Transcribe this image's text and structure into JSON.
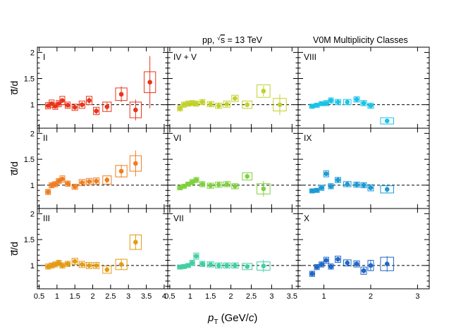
{
  "header": {
    "system_prefix": "pp, ",
    "sqrt_s": "s",
    "system_suffix": " = 13 TeV",
    "classes_label": "V0M Multiplicity Classes"
  },
  "axes": {
    "ylabel": "d̅/d",
    "xlabel_var": "p",
    "xlabel_sub": "T",
    "xlabel_unit": " (GeV/",
    "xlabel_c": "c",
    "xlabel_close": ")"
  },
  "chart_data": {
    "type": "scatter",
    "title": "pp, √s = 13 TeV — V0M Multiplicity Classes",
    "xlabel": "pT (GeV/c)",
    "ylabel": "d̅/d",
    "ylim": [
      0.55,
      2.1
    ],
    "yticks": [
      0.5,
      1,
      1.5,
      2
    ],
    "reference_line": 1,
    "columns": [
      {
        "xlim": [
          0.45,
          4.1
        ],
        "xticks": [
          0.5,
          1,
          1.5,
          2,
          2.5,
          3,
          3.5,
          4
        ],
        "xticklabels": [
          "0.5",
          "1",
          "1.5",
          "2",
          "2.5",
          "3",
          "3.5",
          "4"
        ]
      },
      {
        "xlim": [
          0.45,
          3.65
        ],
        "xticks": [
          0.5,
          1,
          1.5,
          2,
          2.5,
          3,
          3.5
        ],
        "xticklabels": [
          "0.5",
          "1",
          "1.5",
          "2",
          "2.5",
          "3",
          "3.5"
        ]
      },
      {
        "xlim": [
          0.45,
          3.25
        ],
        "xticks": [
          1,
          2,
          3
        ],
        "xticklabels": [
          "1",
          "2",
          "3"
        ]
      }
    ],
    "panels": [
      {
        "label": "I",
        "col": 0,
        "row": 0,
        "color": "#e8351a",
        "x": [
          0.75,
          0.85,
          0.95,
          1.05,
          1.15,
          1.3,
          1.5,
          1.7,
          1.9,
          2.1,
          2.4,
          2.8,
          3.2,
          3.6
        ],
        "y": [
          0.98,
          1.02,
          0.97,
          1.02,
          1.08,
          0.99,
          0.95,
          1.0,
          1.08,
          0.88,
          0.96,
          1.2,
          0.9,
          1.43
        ],
        "ysys": [
          0.06,
          0.07,
          0.06,
          0.06,
          0.08,
          0.06,
          0.06,
          0.07,
          0.08,
          0.07,
          0.09,
          0.12,
          0.15,
          0.2
        ],
        "ystat": [
          0.03,
          0.03,
          0.03,
          0.03,
          0.04,
          0.04,
          0.04,
          0.05,
          0.06,
          0.06,
          0.08,
          0.15,
          0.2,
          0.5
        ]
      },
      {
        "label": "II",
        "col": 0,
        "row": 1,
        "color": "#ef7d1f",
        "x": [
          0.75,
          0.85,
          0.95,
          1.05,
          1.15,
          1.3,
          1.5,
          1.7,
          1.9,
          2.1,
          2.4,
          2.8,
          3.2
        ],
        "y": [
          0.87,
          1.0,
          1.02,
          1.08,
          1.12,
          1.03,
          0.97,
          1.05,
          1.07,
          1.08,
          1.1,
          1.27,
          1.42
        ],
        "ysys": [
          0.05,
          0.05,
          0.05,
          0.05,
          0.06,
          0.05,
          0.05,
          0.06,
          0.06,
          0.06,
          0.08,
          0.11,
          0.15
        ],
        "ystat": [
          0.03,
          0.03,
          0.03,
          0.03,
          0.03,
          0.03,
          0.04,
          0.04,
          0.04,
          0.05,
          0.06,
          0.12,
          0.25
        ]
      },
      {
        "label": "III",
        "col": 0,
        "row": 2,
        "color": "#e39b15",
        "x": [
          0.75,
          0.85,
          0.95,
          1.05,
          1.15,
          1.3,
          1.5,
          1.7,
          1.9,
          2.1,
          2.4,
          2.8,
          3.2
        ],
        "y": [
          0.98,
          1.0,
          1.02,
          1.05,
          1.0,
          1.03,
          1.08,
          1.02,
          1.0,
          1.0,
          0.92,
          1.02,
          1.45
        ],
        "ysys": [
          0.05,
          0.05,
          0.05,
          0.05,
          0.05,
          0.05,
          0.06,
          0.06,
          0.06,
          0.06,
          0.07,
          0.1,
          0.14
        ],
        "ystat": [
          0.02,
          0.02,
          0.02,
          0.02,
          0.03,
          0.03,
          0.03,
          0.03,
          0.04,
          0.04,
          0.05,
          0.1,
          0.15
        ]
      },
      {
        "label": "IV + V",
        "col": 1,
        "row": 0,
        "color": "#c2d12a",
        "x": [
          0.75,
          0.85,
          0.95,
          1.05,
          1.15,
          1.3,
          1.5,
          1.7,
          1.9,
          2.1,
          2.4,
          2.8,
          3.2
        ],
        "y": [
          0.93,
          1.0,
          1.02,
          1.03,
          1.02,
          1.05,
          1.01,
          0.98,
          1.01,
          1.12,
          1.0,
          1.26,
          1.0
        ],
        "ysys": [
          0.05,
          0.05,
          0.05,
          0.05,
          0.05,
          0.05,
          0.05,
          0.05,
          0.06,
          0.06,
          0.07,
          0.12,
          0.12
        ],
        "ystat": [
          0.02,
          0.02,
          0.02,
          0.02,
          0.02,
          0.02,
          0.03,
          0.03,
          0.03,
          0.04,
          0.05,
          0.1,
          0.2
        ]
      },
      {
        "label": "VI",
        "col": 1,
        "row": 1,
        "color": "#7fd13c",
        "x": [
          0.75,
          0.85,
          0.95,
          1.05,
          1.15,
          1.3,
          1.5,
          1.7,
          1.9,
          2.1,
          2.4,
          2.8
        ],
        "y": [
          0.95,
          0.98,
          1.02,
          1.06,
          1.1,
          1.02,
          0.99,
          1.01,
          1.02,
          0.98,
          1.17,
          0.93
        ],
        "ysys": [
          0.04,
          0.04,
          0.04,
          0.05,
          0.05,
          0.05,
          0.05,
          0.05,
          0.05,
          0.05,
          0.07,
          0.1
        ],
        "ystat": [
          0.02,
          0.02,
          0.02,
          0.02,
          0.02,
          0.02,
          0.02,
          0.03,
          0.03,
          0.03,
          0.05,
          0.15
        ]
      },
      {
        "label": "VII",
        "col": 1,
        "row": 2,
        "color": "#3fcfa3",
        "x": [
          0.75,
          0.85,
          0.95,
          1.05,
          1.15,
          1.3,
          1.5,
          1.7,
          1.9,
          2.1,
          2.4,
          2.8
        ],
        "y": [
          0.97,
          0.98,
          1.0,
          1.05,
          1.18,
          1.03,
          1.02,
          1.0,
          1.0,
          1.0,
          0.98,
          0.99
        ],
        "ysys": [
          0.04,
          0.04,
          0.04,
          0.05,
          0.06,
          0.05,
          0.05,
          0.05,
          0.05,
          0.05,
          0.06,
          0.08
        ],
        "ystat": [
          0.02,
          0.02,
          0.02,
          0.02,
          0.03,
          0.02,
          0.02,
          0.02,
          0.03,
          0.03,
          0.04,
          0.12
        ]
      },
      {
        "label": "VIII",
        "col": 2,
        "row": 0,
        "color": "#19c3e8",
        "x": [
          0.75,
          0.85,
          0.95,
          1.05,
          1.15,
          1.3,
          1.5,
          1.7,
          1.85,
          2.0,
          2.35
        ],
        "y": [
          0.97,
          0.99,
          1.02,
          1.03,
          1.08,
          1.05,
          1.05,
          1.1,
          1.03,
          0.98,
          0.69
        ],
        "ysys": [
          0.04,
          0.04,
          0.04,
          0.05,
          0.05,
          0.05,
          0.05,
          0.05,
          0.05,
          0.05,
          0.06
        ],
        "ystat": [
          0.02,
          0.02,
          0.02,
          0.02,
          0.02,
          0.02,
          0.03,
          0.03,
          0.03,
          0.04,
          0.04
        ]
      },
      {
        "label": "IX",
        "col": 2,
        "row": 1,
        "color": "#1a9ad6",
        "x": [
          0.75,
          0.85,
          0.95,
          1.05,
          1.15,
          1.3,
          1.5,
          1.7,
          1.85,
          2.0,
          2.35
        ],
        "y": [
          0.89,
          0.9,
          0.95,
          1.22,
          0.98,
          1.1,
          1.02,
          1.01,
          1.0,
          0.95,
          0.92
        ],
        "ysys": [
          0.04,
          0.04,
          0.05,
          0.06,
          0.05,
          0.05,
          0.05,
          0.05,
          0.05,
          0.06,
          0.07
        ],
        "ystat": [
          0.02,
          0.02,
          0.02,
          0.03,
          0.03,
          0.03,
          0.03,
          0.03,
          0.04,
          0.05,
          0.06
        ]
      },
      {
        "label": "X",
        "col": 2,
        "row": 2,
        "color": "#1f68c9",
        "x": [
          0.75,
          0.85,
          0.95,
          1.05,
          1.15,
          1.3,
          1.5,
          1.7,
          1.85,
          2.0,
          2.35
        ],
        "y": [
          0.84,
          0.97,
          1.02,
          1.1,
          0.98,
          1.12,
          1.05,
          1.03,
          0.9,
          1.0,
          1.03
        ],
        "ysys": [
          0.05,
          0.05,
          0.05,
          0.06,
          0.05,
          0.06,
          0.06,
          0.06,
          0.07,
          0.1,
          0.13
        ],
        "ystat": [
          0.03,
          0.03,
          0.03,
          0.03,
          0.03,
          0.04,
          0.05,
          0.05,
          0.06,
          0.1,
          0.15
        ]
      }
    ]
  }
}
